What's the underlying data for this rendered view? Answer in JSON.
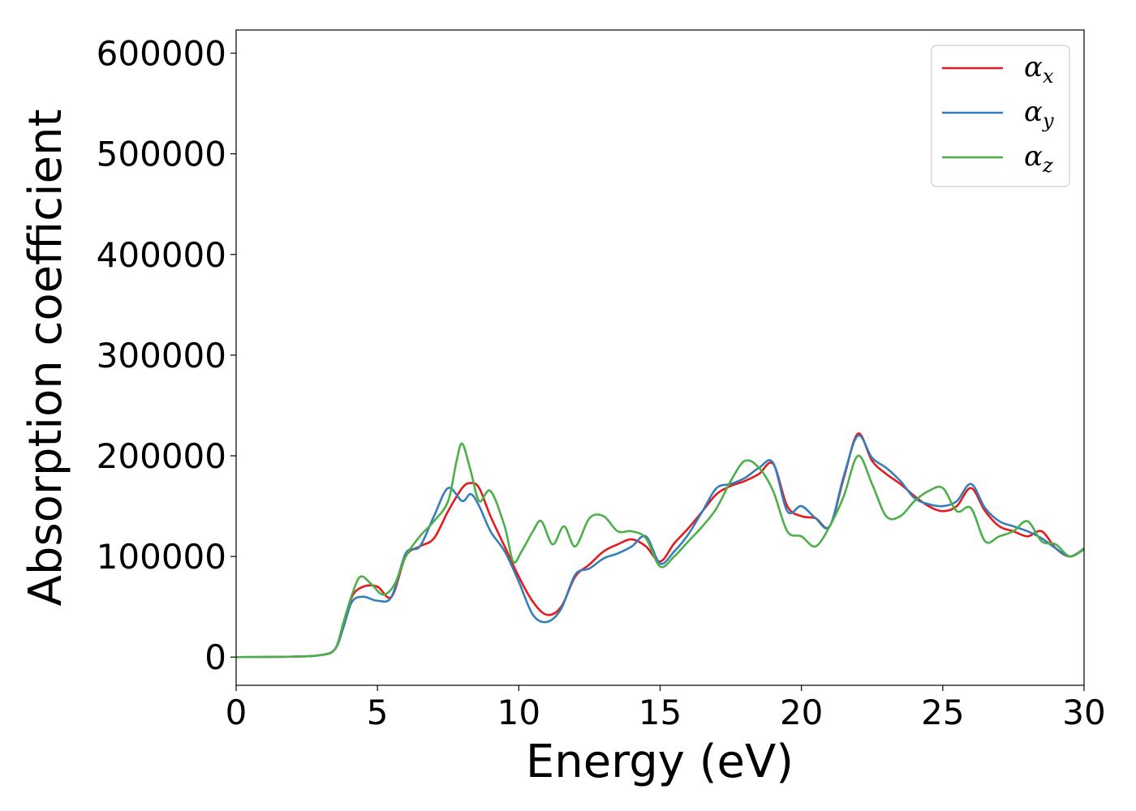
{
  "chart_data": {
    "type": "line",
    "title": "",
    "xlabel": "Energy (eV)",
    "ylabel": "Absorption coefficient",
    "xlim": [
      0,
      30
    ],
    "ylim": [
      -28000,
      623000
    ],
    "xticks": [
      0,
      5,
      10,
      15,
      20,
      25,
      30
    ],
    "yticks": [
      0,
      100000,
      200000,
      300000,
      400000,
      500000,
      600000
    ],
    "grid": false,
    "legend_position": "top-right",
    "series": [
      {
        "name": "α_x",
        "legend_base": "α",
        "legend_sub": "x",
        "color": "#e41a1c",
        "x": [
          0,
          2,
          3,
          3.5,
          3.8,
          4.1,
          4.5,
          5,
          5.5,
          6,
          6.5,
          7,
          7.5,
          8,
          8.3,
          8.6,
          9,
          9.5,
          10,
          10.5,
          11,
          11.5,
          12,
          12.5,
          13,
          13.5,
          14,
          14.5,
          15,
          15.5,
          16,
          16.5,
          17,
          17.5,
          18,
          18.5,
          19,
          19.5,
          20,
          20.5,
          21,
          21.5,
          22,
          22.5,
          23,
          23.5,
          24,
          24.5,
          25,
          25.5,
          26,
          26.5,
          27,
          27.5,
          28,
          28.5,
          29,
          29.5,
          30
        ],
        "values": [
          0,
          500,
          2000,
          8000,
          30000,
          60000,
          70000,
          70000,
          60000,
          100000,
          110000,
          118000,
          145000,
          168000,
          173000,
          168000,
          140000,
          110000,
          80000,
          55000,
          42000,
          50000,
          80000,
          92000,
          105000,
          112000,
          117000,
          110000,
          95000,
          113000,
          128000,
          145000,
          162000,
          170000,
          175000,
          182000,
          192000,
          150000,
          140000,
          138000,
          130000,
          178000,
          222000,
          195000,
          182000,
          172000,
          160000,
          150000,
          145000,
          150000,
          168000,
          145000,
          130000,
          125000,
          120000,
          125000,
          108000,
          100000,
          108000
        ]
      },
      {
        "name": "α_y",
        "legend_base": "α",
        "legend_sub": "y",
        "color": "#377eb8",
        "x": [
          0,
          2,
          3,
          3.5,
          3.8,
          4.1,
          4.5,
          5,
          5.5,
          6,
          6.5,
          7,
          7.5,
          8,
          8.3,
          8.6,
          9,
          9.5,
          10,
          10.5,
          11,
          11.5,
          12,
          12.5,
          13,
          13.5,
          14,
          14.5,
          15,
          15.5,
          16,
          16.5,
          17,
          17.5,
          18,
          18.5,
          19,
          19.5,
          20,
          20.5,
          21,
          21.5,
          22,
          22.5,
          23,
          23.5,
          24,
          24.5,
          25,
          25.5,
          26,
          26.5,
          27,
          27.5,
          28,
          28.5,
          29,
          29.5,
          30
        ],
        "values": [
          0,
          500,
          2000,
          8000,
          30000,
          55000,
          60000,
          56000,
          60000,
          103000,
          110000,
          140000,
          168000,
          155000,
          162000,
          150000,
          125000,
          105000,
          75000,
          42000,
          35000,
          48000,
          82000,
          88000,
          98000,
          103000,
          110000,
          120000,
          93000,
          105000,
          122000,
          145000,
          168000,
          172000,
          178000,
          188000,
          193000,
          145000,
          150000,
          138000,
          130000,
          180000,
          220000,
          198000,
          188000,
          175000,
          158000,
          152000,
          150000,
          155000,
          172000,
          148000,
          135000,
          130000,
          125000,
          118000,
          108000,
          100000,
          107000
        ]
      },
      {
        "name": "α_z",
        "legend_base": "α",
        "legend_sub": "z",
        "color": "#4daf4a",
        "x": [
          0,
          2,
          3,
          3.5,
          3.8,
          4.1,
          4.4,
          4.8,
          5.2,
          5.6,
          6,
          6.5,
          7,
          7.5,
          7.8,
          8,
          8.3,
          8.6,
          9,
          9.5,
          9.8,
          10.1,
          10.5,
          10.8,
          11.2,
          11.6,
          12,
          12.5,
          13,
          13.5,
          14,
          14.5,
          15,
          15.5,
          16,
          16.5,
          17,
          17.5,
          18,
          18.5,
          19,
          19.5,
          20,
          20.5,
          21,
          21.5,
          22,
          22.5,
          23,
          23.5,
          24,
          24.5,
          25,
          25.5,
          26,
          26.5,
          27,
          27.5,
          28,
          28.5,
          29,
          29.5,
          30
        ],
        "values": [
          0,
          500,
          2000,
          8000,
          35000,
          62000,
          80000,
          72000,
          62000,
          72000,
          100000,
          120000,
          135000,
          155000,
          195000,
          212000,
          185000,
          155000,
          165000,
          130000,
          95000,
          105000,
          125000,
          135000,
          112000,
          130000,
          110000,
          138000,
          140000,
          125000,
          125000,
          118000,
          90000,
          100000,
          115000,
          130000,
          148000,
          175000,
          195000,
          188000,
          165000,
          125000,
          120000,
          110000,
          130000,
          160000,
          200000,
          172000,
          140000,
          140000,
          155000,
          165000,
          168000,
          145000,
          148000,
          115000,
          120000,
          125000,
          135000,
          115000,
          112000,
          100000,
          108000
        ]
      }
    ]
  }
}
